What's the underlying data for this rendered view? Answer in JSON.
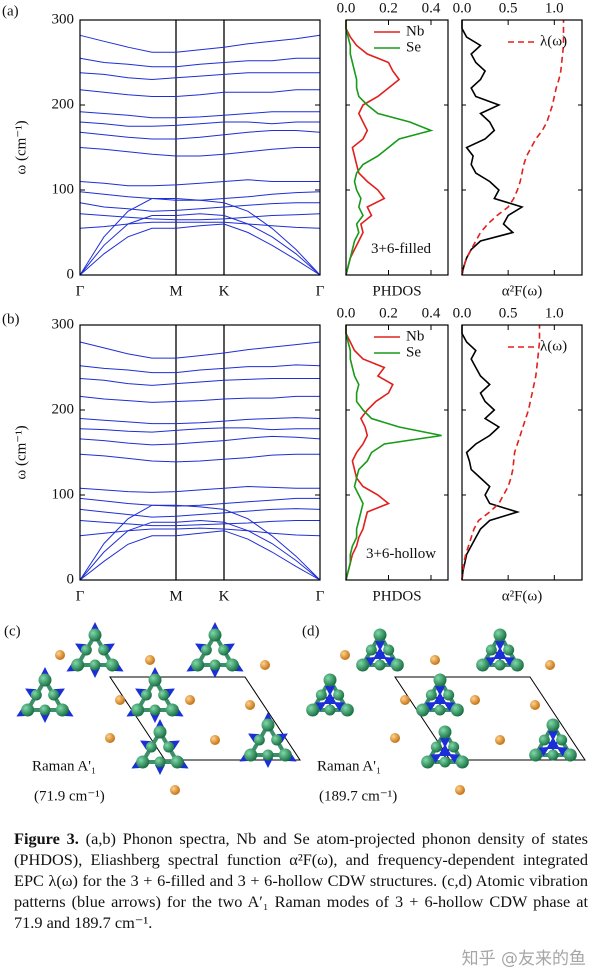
{
  "panels": [
    "(a)",
    "(b)",
    "(c)",
    "(d)"
  ],
  "chart_data": [
    {
      "type": "line",
      "categories": [
        "Γ",
        null,
        null,
        null,
        "M",
        null,
        "K",
        null,
        null,
        null,
        "Γ"
      ],
      "ylabel": "ω (cm⁻¹)",
      "ylim": [
        0,
        300
      ],
      "yticks": [
        0,
        100,
        200,
        300
      ],
      "color": "#1f2ed6",
      "series": [
        {
          "values": [
            0,
            25,
            45,
            55,
            55,
            58,
            60,
            50,
            35,
            18,
            0
          ]
        },
        {
          "values": [
            0,
            35,
            60,
            70,
            70,
            72,
            70,
            60,
            45,
            25,
            0
          ]
        },
        {
          "values": [
            0,
            45,
            75,
            90,
            90,
            88,
            85,
            75,
            55,
            30,
            0
          ]
        },
        {
          "values": [
            55,
            57,
            60,
            62,
            62,
            62,
            62,
            60,
            58,
            56,
            55
          ]
        },
        {
          "values": [
            72,
            70,
            68,
            66,
            65,
            65,
            66,
            68,
            70,
            71,
            72
          ]
        },
        {
          "values": [
            85,
            80,
            78,
            75,
            76,
            78,
            80,
            82,
            84,
            85,
            85
          ]
        },
        {
          "values": [
            98,
            95,
            92,
            90,
            88,
            88,
            90,
            92,
            95,
            97,
            98
          ]
        },
        {
          "values": [
            110,
            108,
            105,
            105,
            106,
            108,
            110,
            112,
            110,
            110,
            110
          ]
        },
        {
          "values": [
            150,
            148,
            145,
            142,
            140,
            140,
            142,
            145,
            148,
            150,
            150
          ]
        },
        {
          "values": [
            168,
            165,
            162,
            160,
            160,
            162,
            165,
            168,
            170,
            170,
            168
          ]
        },
        {
          "values": [
            180,
            178,
            175,
            175,
            176,
            178,
            180,
            180,
            178,
            180,
            180
          ]
        },
        {
          "values": [
            192,
            190,
            188,
            185,
            185,
            186,
            188,
            190,
            192,
            192,
            192
          ]
        },
        {
          "values": [
            218,
            215,
            212,
            210,
            210,
            212,
            215,
            215,
            215,
            218,
            218
          ]
        },
        {
          "values": [
            238,
            236,
            232,
            230,
            232,
            234,
            236,
            238,
            238,
            238,
            238
          ]
        },
        {
          "values": [
            255,
            250,
            248,
            245,
            245,
            248,
            250,
            252,
            252,
            255,
            255
          ]
        },
        {
          "values": [
            282,
            275,
            268,
            262,
            262,
            265,
            268,
            272,
            275,
            278,
            282
          ]
        }
      ]
    },
    {
      "type": "line",
      "xlabel": "PHDOS",
      "annotation": "3+6-filled",
      "legend": "upper right",
      "xlim": [
        0,
        0.48
      ],
      "xticks": [
        {
          "value": 0,
          "label": "0.0"
        },
        0.2,
        0.4
      ],
      "ylim": [
        0,
        300
      ],
      "y": [
        0,
        10,
        20,
        30,
        40,
        50,
        60,
        70,
        80,
        90,
        100,
        110,
        120,
        130,
        140,
        150,
        160,
        170,
        180,
        190,
        200,
        210,
        220,
        230,
        240,
        250,
        260,
        270,
        280,
        290,
        300
      ],
      "series": [
        {
          "name": "Nb",
          "color": "#e0201c",
          "values": [
            0,
            0.01,
            0.02,
            0.04,
            0.06,
            0.08,
            0.07,
            0.12,
            0.1,
            0.18,
            0.15,
            0.1,
            0.06,
            0.05,
            0.04,
            0.03,
            0.08,
            0.1,
            0.08,
            0.06,
            0.08,
            0.15,
            0.2,
            0.25,
            0.22,
            0.2,
            0.1,
            0.05,
            0.02,
            0,
            0
          ]
        },
        {
          "name": "Se",
          "color": "#1a9a1a",
          "values": [
            0,
            0.01,
            0.02,
            0.03,
            0.04,
            0.06,
            0.05,
            0.08,
            0.06,
            0.07,
            0.05,
            0.04,
            0.05,
            0.08,
            0.15,
            0.2,
            0.25,
            0.4,
            0.3,
            0.15,
            0.1,
            0.06,
            0.05,
            0.05,
            0.04,
            0.03,
            0.02,
            0.02,
            0.01,
            0,
            0
          ]
        }
      ]
    },
    {
      "type": "line",
      "xlabel": "α²F(ω)",
      "legend": "upper right",
      "xlim": [
        0,
        1.3
      ],
      "xticks": [
        {
          "value": 0,
          "label": "0.0"
        },
        0.5,
        {
          "value": 1,
          "label": "1.0"
        }
      ],
      "ylim": [
        0,
        300
      ],
      "y": [
        0,
        10,
        20,
        30,
        40,
        50,
        60,
        70,
        80,
        90,
        100,
        110,
        120,
        130,
        140,
        150,
        160,
        170,
        180,
        190,
        200,
        210,
        220,
        230,
        240,
        250,
        260,
        270,
        280,
        290,
        300
      ],
      "series": [
        {
          "color": "#000000",
          "values": [
            0,
            0.02,
            0.05,
            0.1,
            0.2,
            0.55,
            0.45,
            0.5,
            0.65,
            0.35,
            0.4,
            0.3,
            0.15,
            0.1,
            0.12,
            0.05,
            0.25,
            0.35,
            0.3,
            0.2,
            0.4,
            0.15,
            0.1,
            0.2,
            0.25,
            0.15,
            0.1,
            0.2,
            0.05,
            0,
            0
          ]
        },
        {
          "name": "λ(ω)",
          "color": "#e0201c",
          "linestyle": "dashed",
          "values": [
            0,
            0.02,
            0.05,
            0.1,
            0.15,
            0.2,
            0.28,
            0.38,
            0.5,
            0.56,
            0.6,
            0.63,
            0.65,
            0.67,
            0.7,
            0.75,
            0.8,
            0.87,
            0.92,
            0.95,
            0.98,
            1.0,
            1.02,
            1.05,
            1.07,
            1.08,
            1.09,
            1.1,
            1.1,
            1.1,
            1.1
          ]
        }
      ]
    },
    {
      "type": "line",
      "categories": [
        "Γ",
        null,
        null,
        null,
        "M",
        null,
        "K",
        null,
        null,
        null,
        "Γ"
      ],
      "ylabel": "ω (cm⁻¹)",
      "ylim": [
        0,
        300
      ],
      "yticks": [
        0,
        100,
        200,
        300
      ],
      "color": "#1f2ed6",
      "series": [
        {
          "values": [
            0,
            22,
            42,
            52,
            52,
            55,
            58,
            48,
            33,
            16,
            0
          ]
        },
        {
          "values": [
            0,
            33,
            58,
            68,
            68,
            70,
            68,
            58,
            43,
            23,
            0
          ]
        },
        {
          "values": [
            0,
            43,
            72,
            88,
            88,
            86,
            83,
            72,
            52,
            28,
            0
          ]
        },
        {
          "values": [
            52,
            55,
            58,
            60,
            60,
            61,
            60,
            58,
            55,
            53,
            52
          ]
        },
        {
          "values": [
            70,
            68,
            66,
            64,
            64,
            65,
            66,
            67,
            69,
            70,
            70
          ]
        },
        {
          "values": [
            83,
            80,
            77,
            74,
            75,
            77,
            79,
            81,
            83,
            84,
            83
          ]
        },
        {
          "values": [
            96,
            93,
            90,
            88,
            87,
            88,
            90,
            92,
            94,
            96,
            96
          ]
        },
        {
          "values": [
            108,
            106,
            104,
            103,
            104,
            106,
            108,
            110,
            109,
            108,
            108
          ]
        },
        {
          "values": [
            148,
            146,
            143,
            140,
            139,
            140,
            142,
            144,
            147,
            148,
            148
          ]
        },
        {
          "values": [
            166,
            164,
            161,
            159,
            160,
            162,
            164,
            167,
            169,
            168,
            166
          ]
        },
        {
          "values": [
            178,
            177,
            175,
            174,
            176,
            178,
            179,
            179,
            177,
            178,
            178
          ]
        },
        {
          "values": [
            190,
            188,
            186,
            184,
            184,
            185,
            187,
            189,
            190,
            191,
            190
          ]
        },
        {
          "values": [
            216,
            213,
            211,
            209,
            210,
            211,
            213,
            214,
            214,
            216,
            216
          ]
        },
        {
          "values": [
            237,
            235,
            231,
            229,
            231,
            233,
            235,
            236,
            237,
            237,
            237
          ]
        },
        {
          "values": [
            252,
            249,
            247,
            244,
            244,
            247,
            249,
            251,
            251,
            253,
            252
          ]
        },
        {
          "values": [
            280,
            273,
            266,
            261,
            261,
            264,
            267,
            271,
            274,
            277,
            280
          ]
        }
      ]
    },
    {
      "type": "line",
      "xlabel": "PHDOS",
      "annotation": "3+6-hollow",
      "legend": "upper right",
      "xlim": [
        0,
        0.48
      ],
      "xticks": [
        {
          "value": 0,
          "label": "0.0"
        },
        0.2,
        0.4
      ],
      "ylim": [
        0,
        300
      ],
      "y": [
        0,
        10,
        20,
        30,
        40,
        50,
        60,
        70,
        80,
        90,
        100,
        110,
        120,
        130,
        140,
        150,
        160,
        170,
        180,
        190,
        200,
        210,
        220,
        230,
        240,
        250,
        260,
        270,
        280,
        290,
        300
      ],
      "series": [
        {
          "name": "Nb",
          "color": "#e0201c",
          "values": [
            0,
            0.01,
            0.02,
            0.03,
            0.05,
            0.06,
            0.08,
            0.09,
            0.1,
            0.2,
            0.15,
            0.08,
            0.05,
            0.04,
            0.03,
            0.05,
            0.08,
            0.1,
            0.09,
            0.07,
            0.1,
            0.14,
            0.2,
            0.22,
            0.15,
            0.18,
            0.08,
            0.04,
            0.02,
            0,
            0
          ]
        },
        {
          "name": "Se",
          "color": "#1a9a1a",
          "values": [
            0,
            0.01,
            0.02,
            0.02,
            0.03,
            0.05,
            0.05,
            0.06,
            0.07,
            0.08,
            0.06,
            0.04,
            0.05,
            0.06,
            0.1,
            0.12,
            0.18,
            0.45,
            0.25,
            0.12,
            0.08,
            0.05,
            0.05,
            0.06,
            0.04,
            0.03,
            0.02,
            0.02,
            0.01,
            0,
            0
          ]
        }
      ]
    },
    {
      "type": "line",
      "xlabel": "α²F(ω)",
      "legend": "upper right",
      "xlim": [
        0,
        1.3
      ],
      "xticks": [
        {
          "value": 0,
          "label": "0.0"
        },
        0.5,
        {
          "value": 1,
          "label": "1.0"
        }
      ],
      "ylim": [
        0,
        300
      ],
      "y": [
        0,
        10,
        20,
        30,
        40,
        50,
        60,
        70,
        80,
        90,
        100,
        110,
        120,
        130,
        140,
        150,
        160,
        170,
        180,
        190,
        200,
        210,
        220,
        230,
        240,
        250,
        260,
        270,
        280,
        290,
        300
      ],
      "series": [
        {
          "color": "#000000",
          "values": [
            0,
            0.01,
            0.03,
            0.05,
            0.1,
            0.15,
            0.2,
            0.3,
            0.6,
            0.3,
            0.25,
            0.3,
            0.2,
            0.1,
            0.08,
            0.05,
            0.15,
            0.3,
            0.4,
            0.25,
            0.35,
            0.25,
            0.2,
            0.3,
            0.2,
            0.15,
            0.1,
            0.15,
            0.05,
            0,
            0
          ]
        },
        {
          "name": "λ(ω)",
          "color": "#e0201c",
          "linestyle": "dashed",
          "values": [
            0,
            0.01,
            0.02,
            0.04,
            0.07,
            0.1,
            0.13,
            0.18,
            0.3,
            0.4,
            0.45,
            0.5,
            0.53,
            0.55,
            0.56,
            0.57,
            0.6,
            0.63,
            0.66,
            0.69,
            0.72,
            0.74,
            0.76,
            0.78,
            0.8,
            0.81,
            0.82,
            0.83,
            0.84,
            0.84,
            0.84
          ]
        }
      ]
    }
  ],
  "structures": [
    {
      "mode": "Raman A'₁",
      "frequency": "(71.9 cm⁻¹)"
    },
    {
      "mode": "Raman A'₁",
      "frequency": "(189.7 cm⁻¹)"
    }
  ],
  "caption": {
    "label": "Figure 3.",
    "text": " (a,b) Phonon spectra, Nb and Se atom-projected phonon density of states (PHDOS), Eliashberg spectral function α²F(ω), and frequency-dependent integrated EPC λ(ω) for the 3 + 6-filled and 3 + 6-hollow CDW structures. (c,d) Atomic vibration patterns (blue arrows) for the two A′₁ Raman modes of 3 + 6-hollow CDW phase at 71.9 and 189.7 cm⁻¹."
  },
  "watermark": "知乎 @友来的鱼"
}
